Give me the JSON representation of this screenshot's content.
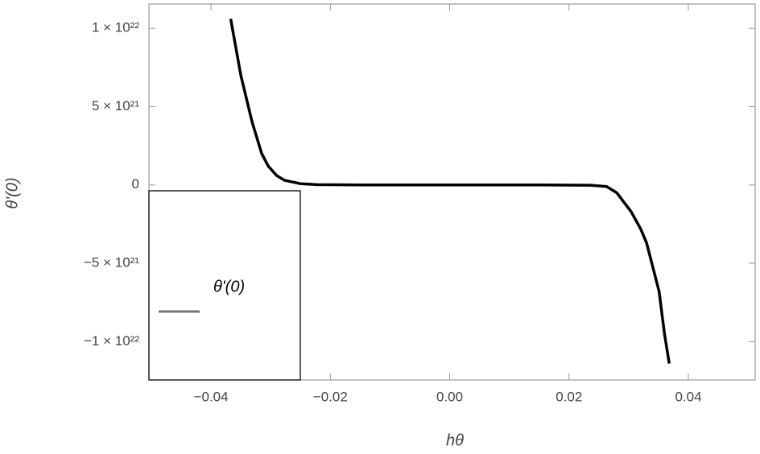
{
  "chart_data": {
    "type": "line",
    "x_label": "hθ",
    "y_label": "θ'(0)",
    "x": [
      -0.0367,
      -0.035,
      -0.0331,
      -0.0315,
      -0.0304,
      -0.029,
      -0.0277,
      -0.025,
      -0.0223,
      -0.015,
      0,
      0.015,
      0.0236,
      0.0263,
      0.028,
      0.0304,
      0.032,
      0.033,
      0.0351,
      0.036,
      0.0368
    ],
    "series": [
      {
        "name": "θ'(0)",
        "color": "#000000",
        "values": [
          1.06e+22,
          7e+21,
          4e+21,
          2e+21,
          1.2e+21,
          6e+20,
          3e+20,
          8e+19,
          2e+19,
          0,
          0,
          0,
          -2e+19,
          -1e+20,
          -5e+20,
          -1.7e+21,
          -2.8e+21,
          -3.7e+21,
          -6.8e+21,
          -9.5e+21,
          -1.14e+22
        ]
      }
    ],
    "xlim": [
      -0.0504,
      0.0512
    ],
    "ylim": [
      -1.245e+22,
      1.155e+22
    ],
    "xticks": [
      {
        "value": -0.04,
        "label": "−0.04"
      },
      {
        "value": -0.02,
        "label": "−0.02"
      },
      {
        "value": 0,
        "label": "0.00"
      },
      0.02,
      0.04
    ],
    "yticks": [
      {
        "value": -1e+22,
        "label": "−1 × 10²²"
      },
      {
        "value": -5e+21,
        "label": "−5 × 10²¹"
      },
      0,
      {
        "value": 5e+21,
        "label": "5 × 10²¹"
      },
      {
        "value": 1e+22,
        "label": "1 × 10²²"
      }
    ],
    "legend": "lower left",
    "grid": false
  }
}
